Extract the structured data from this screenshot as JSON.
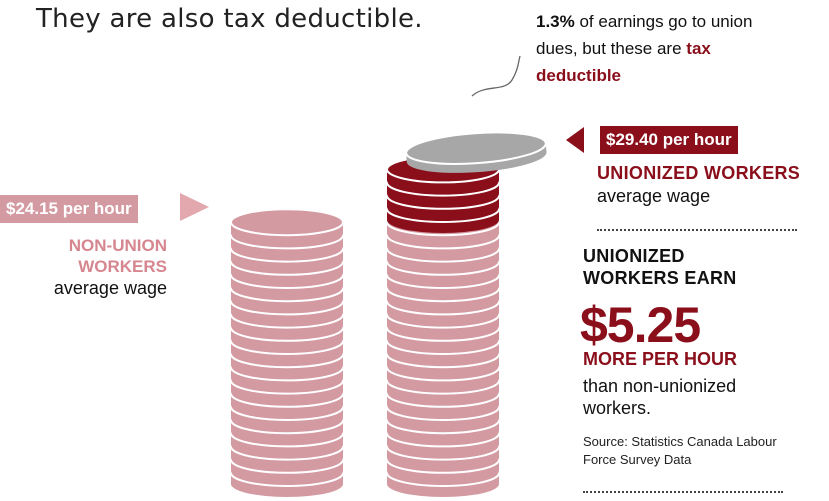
{
  "intro_text": "They are also tax deductible.",
  "dues_note": {
    "percent": "1.3%",
    "text_a": " of earnings go to union dues, but these are ",
    "text_b": "tax deductible"
  },
  "union": {
    "wage_label": "$29.40 per hour",
    "title": "UNIONIZED WORKERS",
    "subtitle": "average wage"
  },
  "nonunion": {
    "wage_label": "$24.15 per hour",
    "title": "NON-UNION WORKERS",
    "subtitle": "average wage"
  },
  "summary": {
    "heading": "UNIONIZED WORKERS EARN",
    "amount": "$5.25",
    "more": "MORE PER HOUR",
    "than": "than non-unionized workers."
  },
  "source": "Source: Statistics Canada Labour Force Survey Data",
  "colors": {
    "dark_red": "#8a0f1b",
    "pink": "#d49aa2",
    "grey": "#a7a7a7"
  },
  "stacks": {
    "nonunion_coins": 20,
    "union_pink_coins": 20,
    "union_dark_coins": 4
  }
}
